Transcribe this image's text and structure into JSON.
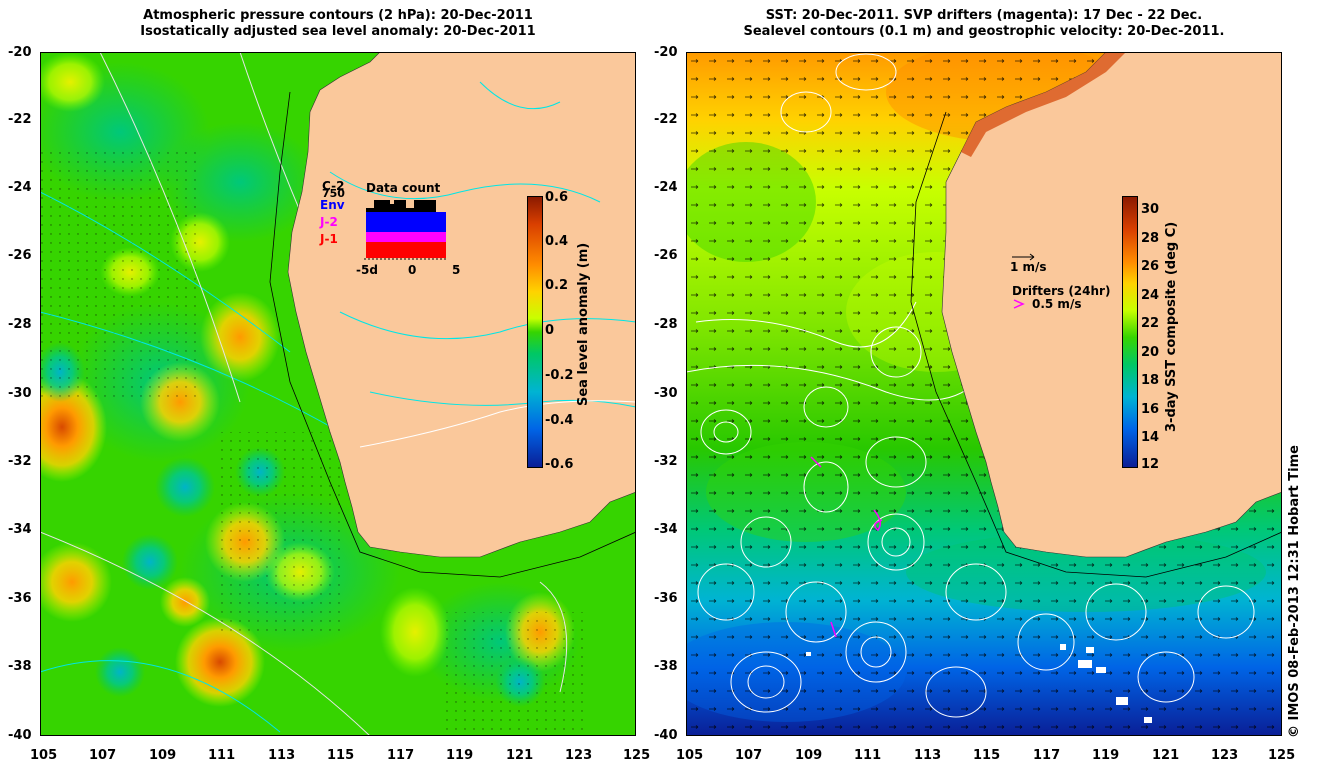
{
  "left_panel": {
    "title_line1": "Atmospheric pressure contours (2 hPa): 20-Dec-2011",
    "title_line2": "Isostatically adjusted sea level anomaly: 20-Dec-2011",
    "colorbar": {
      "label": "Sea level anomaly (m)",
      "ticks": [
        "0.6",
        "0.4",
        "0.2",
        "0",
        "-0.2",
        "-0.4",
        "-0.6"
      ],
      "min": -0.6,
      "max": 0.6,
      "colors": [
        "#8b1a00",
        "#d93f00",
        "#ff8c00",
        "#ffd200",
        "#c8ff00",
        "#36d400",
        "#00c864",
        "#00b4d2",
        "#0064e6",
        "#0a1e96"
      ]
    },
    "inset": {
      "title": "Data count",
      "max_label": "750",
      "sat_labels": [
        {
          "name": "C-2",
          "color": "#000000"
        },
        {
          "name": "Env",
          "color": "#0000ff"
        },
        {
          "name": "J-2",
          "color": "#ff00ff"
        },
        {
          "name": "J-1",
          "color": "#ff0000"
        }
      ],
      "x_ticks": [
        "-5d",
        "0",
        "5"
      ]
    }
  },
  "right_panel": {
    "title_line1": "SST: 20-Dec-2011. SVP drifters (magenta): 17 Dec - 22 Dec.",
    "title_line2": "Sealevel contours (0.1 m) and geostrophic velocity: 20-Dec-2011.",
    "colorbar": {
      "label": "3-day SST composite (deg C)",
      "ticks": [
        "30",
        "28",
        "26",
        "24",
        "22",
        "20",
        "18",
        "16",
        "14",
        "12"
      ],
      "min": 12,
      "max": 31,
      "colors": [
        "#8b1a00",
        "#d93f00",
        "#ff8c00",
        "#ffd200",
        "#c8ff00",
        "#36d400",
        "#00c864",
        "#00b4d2",
        "#0064e6",
        "#0a1e96"
      ]
    },
    "velocity_legend": "1 m/s",
    "drifter_legend_title": "Drifters (24hr)",
    "drifter_legend_scale": "0.5 m/s"
  },
  "axes": {
    "lat_ticks": [
      "-20",
      "-22",
      "-24",
      "-26",
      "-28",
      "-30",
      "-32",
      "-34",
      "-36",
      "-38",
      "-40"
    ],
    "lon_ticks": [
      "105",
      "107",
      "109",
      "111",
      "113",
      "115",
      "117",
      "119",
      "121",
      "123",
      "125"
    ]
  },
  "colors": {
    "land": "#fac89b",
    "pressure_contour": "#00e6e6",
    "sealevel_contour": "#ffffff"
  },
  "credit": "© IMOS 08-Feb-2013 12:31 Hobart Time"
}
